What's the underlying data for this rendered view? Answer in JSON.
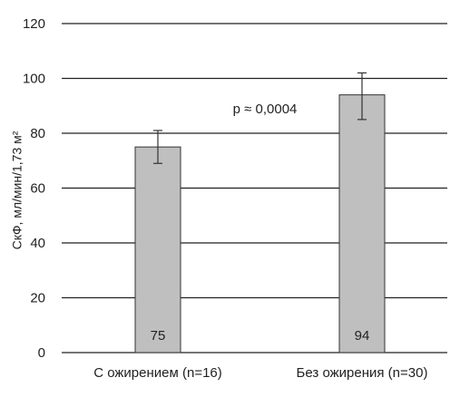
{
  "chart_data": {
    "type": "bar",
    "ylabel": "СкФ, мл/мин/1,73 м²",
    "ylim": [
      0,
      120
    ],
    "yticks": [
      "0",
      "20",
      "40",
      "60",
      "80",
      "100",
      "120"
    ],
    "categories": [
      "С ожирением (n=16)",
      "Без ожирения (n=30)"
    ],
    "values": [
      75,
      94
    ],
    "value_labels": [
      "75",
      "94"
    ],
    "error_low": [
      69,
      85
    ],
    "error_high": [
      81,
      102
    ],
    "annotation": "p ≈ 0,0004",
    "grid": true,
    "colors": {
      "bar": "#bfbfbf",
      "bar_stroke": "#333333",
      "grid": "#222222"
    }
  }
}
